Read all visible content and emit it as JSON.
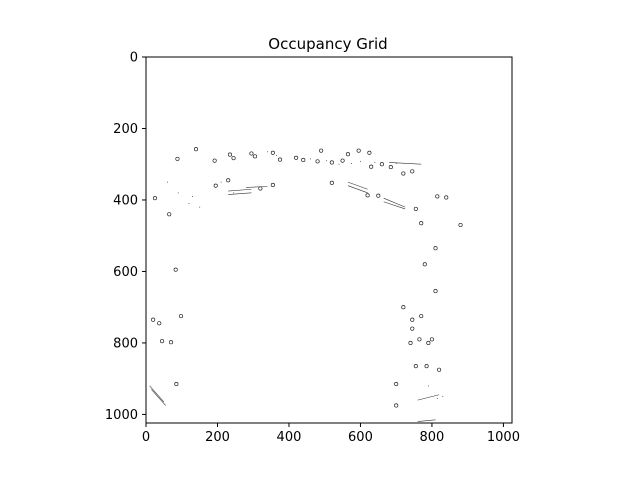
{
  "chart_data": {
    "type": "scatter",
    "title": "Occupancy Grid",
    "xlabel": "",
    "ylabel": "",
    "xlim": [
      0,
      1024
    ],
    "ylim": [
      1024,
      0
    ],
    "y_inverted": true,
    "grid": false,
    "x_ticks": [
      0,
      200,
      400,
      600,
      800,
      1000
    ],
    "y_ticks": [
      0,
      200,
      400,
      600,
      800,
      1000
    ],
    "x_tick_labels": [
      "0",
      "200",
      "400",
      "600",
      "800",
      "1000"
    ],
    "y_tick_labels": [
      "0",
      "200",
      "400",
      "600",
      "800",
      "1000"
    ],
    "occupied_rings": [
      [
        88,
        285
      ],
      [
        140,
        258
      ],
      [
        192,
        290
      ],
      [
        235,
        273
      ],
      [
        245,
        283
      ],
      [
        295,
        270
      ],
      [
        305,
        278
      ],
      [
        355,
        268
      ],
      [
        375,
        287
      ],
      [
        420,
        282
      ],
      [
        440,
        288
      ],
      [
        480,
        292
      ],
      [
        490,
        262
      ],
      [
        520,
        295
      ],
      [
        550,
        290
      ],
      [
        565,
        272
      ],
      [
        595,
        262
      ],
      [
        625,
        268
      ],
      [
        630,
        307
      ],
      [
        660,
        300
      ],
      [
        685,
        308
      ],
      [
        720,
        326
      ],
      [
        745,
        320
      ],
      [
        25,
        395
      ],
      [
        65,
        440
      ],
      [
        195,
        360
      ],
      [
        230,
        345
      ],
      [
        320,
        368
      ],
      [
        355,
        358
      ],
      [
        520,
        352
      ],
      [
        620,
        387
      ],
      [
        650,
        388
      ],
      [
        755,
        425
      ],
      [
        770,
        465
      ],
      [
        815,
        390
      ],
      [
        840,
        393
      ],
      [
        880,
        470
      ],
      [
        810,
        535
      ],
      [
        780,
        580
      ],
      [
        83,
        595
      ],
      [
        20,
        735
      ],
      [
        37,
        745
      ],
      [
        98,
        725
      ],
      [
        720,
        700
      ],
      [
        745,
        735
      ],
      [
        770,
        725
      ],
      [
        810,
        655
      ],
      [
        745,
        760
      ],
      [
        740,
        800
      ],
      [
        765,
        790
      ],
      [
        790,
        800
      ],
      [
        800,
        790
      ],
      [
        755,
        865
      ],
      [
        785,
        865
      ],
      [
        820,
        875
      ],
      [
        45,
        795
      ],
      [
        70,
        798
      ],
      [
        85,
        915
      ],
      [
        700,
        915
      ],
      [
        700,
        975
      ]
    ],
    "wall_segments": [
      [
        [
          230,
          375
        ],
        [
          295,
          370
        ]
      ],
      [
        [
          230,
          385
        ],
        [
          295,
          380
        ]
      ],
      [
        [
          280,
          365
        ],
        [
          340,
          362
        ]
      ],
      [
        [
          565,
          350
        ],
        [
          620,
          370
        ]
      ],
      [
        [
          565,
          360
        ],
        [
          620,
          380
        ]
      ],
      [
        [
          665,
          395
        ],
        [
          725,
          420
        ]
      ],
      [
        [
          665,
          405
        ],
        [
          725,
          425
        ]
      ],
      [
        [
          10,
          920
        ],
        [
          50,
          965
        ]
      ],
      [
        [
          15,
          930
        ],
        [
          55,
          975
        ]
      ],
      [
        [
          760,
          960
        ],
        [
          820,
          945
        ]
      ],
      [
        [
          760,
          1020
        ],
        [
          810,
          1015
        ]
      ],
      [
        [
          680,
          295
        ],
        [
          770,
          300
        ]
      ]
    ],
    "scatter_dots": [
      [
        120,
        410
      ],
      [
        210,
        350
      ],
      [
        245,
        380
      ],
      [
        300,
        278
      ],
      [
        340,
        265
      ],
      [
        365,
        275
      ],
      [
        460,
        285
      ],
      [
        505,
        290
      ],
      [
        540,
        300
      ],
      [
        575,
        298
      ],
      [
        600,
        292
      ],
      [
        640,
        295
      ],
      [
        700,
        298
      ],
      [
        150,
        420
      ],
      [
        60,
        350
      ],
      [
        90,
        380
      ],
      [
        130,
        390
      ],
      [
        815,
        955
      ],
      [
        830,
        950
      ],
      [
        790,
        920
      ]
    ]
  }
}
